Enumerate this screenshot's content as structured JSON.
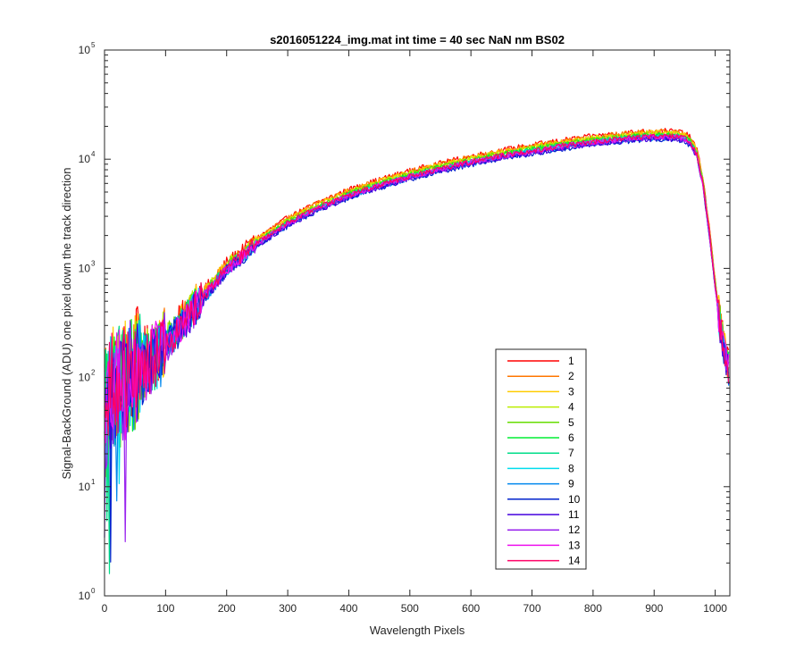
{
  "chart_data": {
    "type": "line",
    "title": "s2016051224_img.mat int time = 40 sec  NaN nm BS02",
    "xlabel": "Wavelength Pixels",
    "ylabel": "Signal-BackGround (ADU) one pixel down the track direction",
    "xlim": [
      0,
      1024
    ],
    "ylim": [
      1,
      100000
    ],
    "y_scale": "log",
    "x_ticks": [
      0,
      100,
      200,
      300,
      400,
      500,
      600,
      700,
      800,
      900,
      1000
    ],
    "x_tick_labels": [
      "0",
      "100",
      "200",
      "300",
      "400",
      "500",
      "600",
      "700",
      "800",
      "900",
      "1000"
    ],
    "y_ticks": [
      1,
      10,
      100,
      1000,
      10000,
      100000
    ],
    "y_tick_labels": [
      {
        "base": "10",
        "exp": "0"
      },
      {
        "base": "10",
        "exp": "1"
      },
      {
        "base": "10",
        "exp": "2"
      },
      {
        "base": "10",
        "exp": "3"
      },
      {
        "base": "10",
        "exp": "4"
      },
      {
        "base": "10",
        "exp": "5"
      }
    ],
    "grid": false,
    "legend_position": "lower-right",
    "approx_profile": {
      "x": [
        0,
        10,
        20,
        40,
        60,
        80,
        100,
        150,
        200,
        250,
        300,
        350,
        400,
        450,
        500,
        550,
        600,
        650,
        700,
        750,
        800,
        850,
        880,
        900,
        920,
        940,
        950,
        960,
        970,
        980,
        990,
        1000,
        1010,
        1020,
        1023
      ],
      "y": [
        50,
        70,
        85,
        100,
        120,
        150,
        200,
        450,
        1000,
        1700,
        2600,
        3600,
        4700,
        5800,
        7000,
        8200,
        9500,
        10800,
        12000,
        13300,
        14500,
        15500,
        16000,
        16200,
        16200,
        16000,
        15500,
        14000,
        11000,
        6000,
        2200,
        700,
        250,
        130,
        120
      ]
    },
    "series": [
      {
        "name": "1",
        "color": "#ff0000",
        "scale": 1.12
      },
      {
        "name": "2",
        "color": "#ff7700",
        "scale": 1.1
      },
      {
        "name": "3",
        "color": "#ffcc00",
        "scale": 1.08
      },
      {
        "name": "4",
        "color": "#bbee00",
        "scale": 1.06
      },
      {
        "name": "5",
        "color": "#66dd00",
        "scale": 1.04
      },
      {
        "name": "6",
        "color": "#00ee33",
        "scale": 1.02
      },
      {
        "name": "7",
        "color": "#00dd88",
        "scale": 1.0
      },
      {
        "name": "8",
        "color": "#00ddee",
        "scale": 0.98
      },
      {
        "name": "9",
        "color": "#0088ee",
        "scale": 0.96
      },
      {
        "name": "10",
        "color": "#0022cc",
        "scale": 0.94
      },
      {
        "name": "11",
        "color": "#4400dd",
        "scale": 0.95
      },
      {
        "name": "12",
        "color": "#9922ee",
        "scale": 0.97
      },
      {
        "name": "13",
        "color": "#ee11ee",
        "scale": 0.99
      },
      {
        "name": "14",
        "color": "#ff0066",
        "scale": 1.0
      }
    ]
  }
}
